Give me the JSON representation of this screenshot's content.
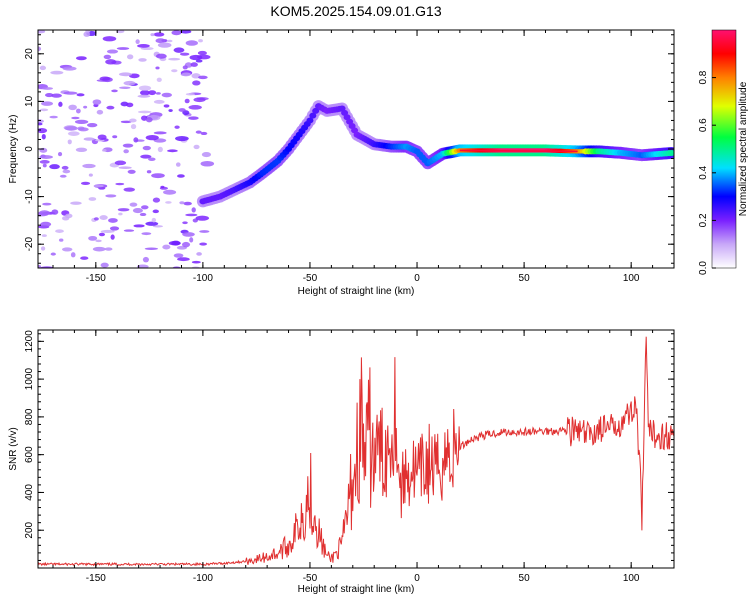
{
  "title": "KOM5.2025.154.09.01.G13",
  "chart_data": [
    {
      "type": "heatmap",
      "xlabel": "Height of straight line (km)",
      "ylabel": "Frequency (Hz)",
      "xlim": [
        -177,
        120
      ],
      "ylim": [
        -25,
        25
      ],
      "x_ticks": [
        -150,
        -100,
        -50,
        0,
        50,
        100
      ],
      "y_ticks": [
        -20,
        -10,
        0,
        10,
        20
      ],
      "x_tick_labels": [
        "-150",
        "-100",
        "-50",
        "0",
        "50",
        "100"
      ],
      "y_tick_labels": [
        "-20",
        "-10",
        "0",
        "10",
        "20"
      ],
      "grid": false,
      "colorbar": {
        "label": "Normalized spectral amplitude",
        "range": [
          0,
          1
        ],
        "ticks": [
          0.0,
          0.2,
          0.4,
          0.6,
          0.8
        ],
        "tick_labels": [
          "0.0",
          "0.2",
          "0.4",
          "0.6",
          "0.8"
        ]
      },
      "ridge": [
        {
          "x": -100,
          "y": -11,
          "a": 0.22
        },
        {
          "x": -92,
          "y": -10,
          "a": 0.22
        },
        {
          "x": -85,
          "y": -8.5,
          "a": 0.24
        },
        {
          "x": -78,
          "y": -7,
          "a": 0.28
        },
        {
          "x": -72,
          "y": -5,
          "a": 0.32
        },
        {
          "x": -65,
          "y": -2.5,
          "a": 0.33
        },
        {
          "x": -60,
          "y": 0,
          "a": 0.3
        },
        {
          "x": -55,
          "y": 3,
          "a": 0.28
        },
        {
          "x": -50,
          "y": 6,
          "a": 0.25
        },
        {
          "x": -46,
          "y": 9,
          "a": 0.22
        },
        {
          "x": -42,
          "y": 8,
          "a": 0.2
        },
        {
          "x": -35,
          "y": 8.5,
          "a": 0.22
        },
        {
          "x": -28,
          "y": 3,
          "a": 0.2
        },
        {
          "x": -20,
          "y": 1,
          "a": 0.25
        },
        {
          "x": -12,
          "y": 0.5,
          "a": 0.32
        },
        {
          "x": -5,
          "y": 0.5,
          "a": 0.38
        },
        {
          "x": 0,
          "y": -0.5,
          "a": 0.35
        },
        {
          "x": 5,
          "y": -3,
          "a": 0.35
        },
        {
          "x": 12,
          "y": -1,
          "a": 0.4
        },
        {
          "x": 20,
          "y": -0.3,
          "a": 0.8
        },
        {
          "x": 40,
          "y": -0.3,
          "a": 1.0
        },
        {
          "x": 60,
          "y": -0.3,
          "a": 1.0
        },
        {
          "x": 75,
          "y": -0.5,
          "a": 0.8
        },
        {
          "x": 85,
          "y": -0.5,
          "a": 0.5
        },
        {
          "x": 95,
          "y": -0.8,
          "a": 0.4
        },
        {
          "x": 105,
          "y": -1.3,
          "a": 0.35
        },
        {
          "x": 120,
          "y": -0.8,
          "a": 0.5
        }
      ]
    },
    {
      "type": "line",
      "xlabel": "Height of straight line (km)",
      "ylabel": "SNR (v/v)",
      "xlim": [
        -177,
        120
      ],
      "ylim": [
        0,
        1260
      ],
      "x_ticks": [
        -150,
        -100,
        -50,
        0,
        50,
        100
      ],
      "y_ticks": [
        200,
        400,
        600,
        800,
        1000,
        1200
      ],
      "x_tick_labels": [
        "-150",
        "-100",
        "-50",
        "0",
        "50",
        "100"
      ],
      "y_tick_labels": [
        "200",
        "400",
        "600",
        "800",
        "1000",
        "1200"
      ],
      "grid": false,
      "series": [
        {
          "color": "#e03030",
          "x": [
            -177,
            -150,
            -120,
            -100,
            -90,
            -80,
            -75,
            -70,
            -65,
            -60,
            -57,
            -55,
            -52,
            -50,
            -48,
            -45,
            -42,
            -40,
            -35,
            -32,
            -30,
            -28,
            -26,
            -24,
            -22,
            -20,
            -18,
            -15,
            -12,
            -10,
            -8,
            -5,
            -2,
            0,
            3,
            6,
            9,
            12,
            15,
            20,
            25,
            30,
            40,
            50,
            60,
            70,
            75,
            80,
            85,
            90,
            95,
            100,
            102,
            104,
            105,
            106,
            107,
            108,
            110,
            115,
            120
          ],
          "values": [
            20,
            20,
            20,
            20,
            25,
            35,
            45,
            60,
            80,
            120,
            180,
            250,
            330,
            420,
            300,
            150,
            60,
            50,
            120,
            330,
            470,
            600,
            760,
            560,
            700,
            560,
            640,
            580,
            720,
            880,
            400,
            500,
            520,
            480,
            520,
            560,
            500,
            580,
            600,
            640,
            680,
            700,
            720,
            720,
            725,
            730,
            720,
            700,
            740,
            730,
            780,
            820,
            900,
            550,
            230,
            680,
            1260,
            700,
            710,
            705,
            700
          ]
        }
      ]
    }
  ]
}
